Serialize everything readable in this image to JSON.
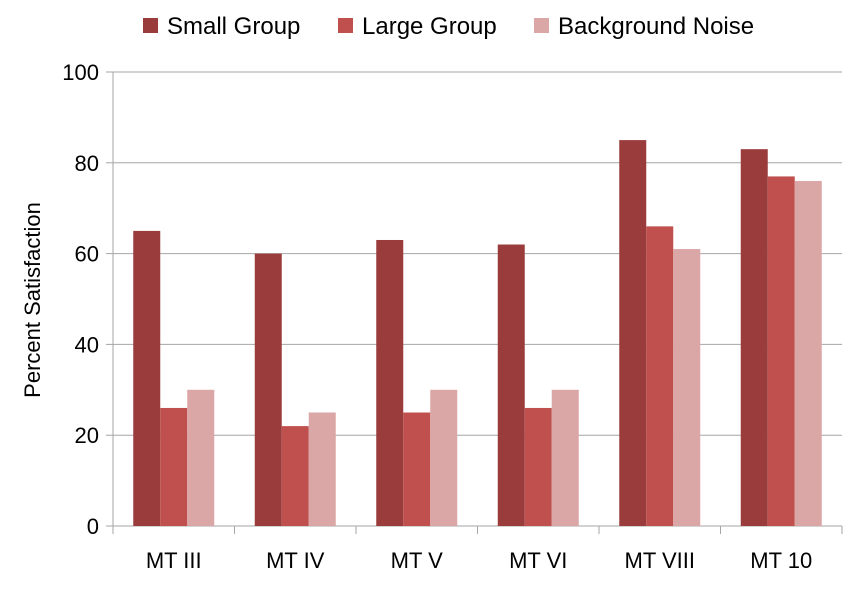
{
  "chart_data": {
    "type": "bar",
    "title": "",
    "xlabel": "",
    "ylabel": "Percent Satisfaction",
    "categories": [
      "MT III",
      "MT IV",
      "MT V",
      "MT VI",
      "MT VIII",
      "MT 10"
    ],
    "series": [
      {
        "name": "Small Group",
        "values": [
          65,
          60,
          63,
          62,
          85,
          83
        ],
        "color": "#9b3c3c"
      },
      {
        "name": "Large Group",
        "values": [
          26,
          22,
          25,
          26,
          66,
          77
        ],
        "color": "#c0504d"
      },
      {
        "name": "Background Noise",
        "values": [
          30,
          25,
          30,
          30,
          61,
          76
        ],
        "color": "#dba6a6"
      }
    ],
    "ylim": [
      0,
      100
    ],
    "yticks": [
      0,
      20,
      40,
      60,
      80,
      100
    ],
    "grid": true,
    "gridline_color": "#a6a6a6",
    "legend_position": "top"
  }
}
